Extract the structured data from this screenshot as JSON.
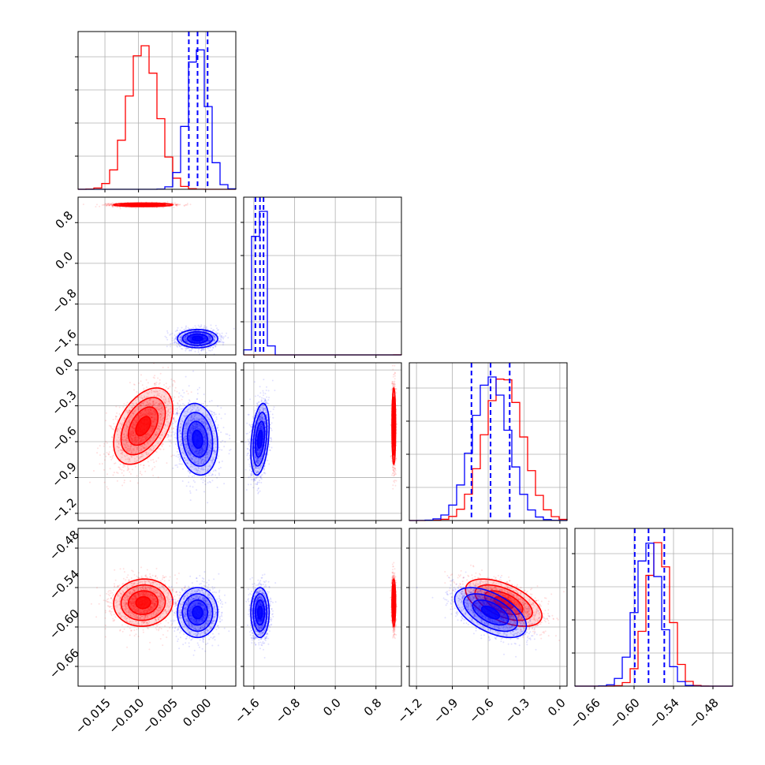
{
  "chart_data": {
    "type": "corner",
    "grid": true,
    "colors": {
      "red": "#ff0000",
      "blue": "#0000ff",
      "grid": "#b0b0b0",
      "axes": "#000000"
    },
    "params": [
      {
        "range": [
          -0.019,
          0.0045
        ],
        "ticks": [
          -0.015,
          -0.01,
          -0.005,
          0.0
        ],
        "tick_labels": [
          "−0.015",
          "−0.010",
          "−0.005",
          "0.000"
        ]
      },
      {
        "range": [
          -1.8,
          1.3
        ],
        "ticks": [
          -1.6,
          -0.8,
          0.0,
          0.8
        ],
        "tick_labels": [
          "−1.6",
          "−0.8",
          "0.0",
          "0.8"
        ]
      },
      {
        "range": [
          -1.26,
          0.06
        ],
        "ticks": [
          -1.2,
          -0.9,
          -0.6,
          -0.3,
          0.0
        ],
        "tick_labels": [
          "−1.2",
          "−0.9",
          "−0.6",
          "−0.3",
          "0.0"
        ]
      },
      {
        "range": [
          -0.69,
          -0.45
        ],
        "ticks": [
          -0.66,
          -0.6,
          -0.54,
          -0.48
        ],
        "tick_labels": [
          "−0.66",
          "−0.60",
          "−0.54",
          "−0.48"
        ]
      }
    ],
    "series": [
      {
        "color": "red",
        "mean": [
          -0.0093,
          1.15,
          -0.47,
          -0.563
        ],
        "std": [
          0.0022,
          0.018,
          0.16,
          0.018
        ]
      },
      {
        "color": "blue",
        "mean": [
          -0.0012,
          -1.48,
          -0.58,
          -0.578
        ],
        "std": [
          0.0015,
          0.09,
          0.15,
          0.019
        ]
      }
    ],
    "quantile_lines": {
      "color": "blue",
      "values": [
        [
          -0.0025,
          -0.0012,
          0.0003
        ],
        [
          -1.57,
          -1.48,
          -1.41
        ],
        [
          -0.74,
          -0.58,
          -0.42
        ],
        [
          -0.599,
          -0.578,
          -0.554
        ]
      ]
    },
    "correlations": [
      {
        "pair": [
          1,
          0
        ],
        "red": 0.0,
        "blue": 0.0
      },
      {
        "pair": [
          2,
          0
        ],
        "red": 0.45,
        "blue": -0.15
      },
      {
        "pair": [
          2,
          1
        ],
        "red": 0.0,
        "blue": 0.35
      },
      {
        "pair": [
          3,
          0
        ],
        "red": 0.05,
        "blue": 0.0
      },
      {
        "pair": [
          3,
          1
        ],
        "red": 0.0,
        "blue": 0.0
      },
      {
        "pair": [
          3,
          2
        ],
        "red": -0.55,
        "blue": -0.55
      }
    ]
  }
}
